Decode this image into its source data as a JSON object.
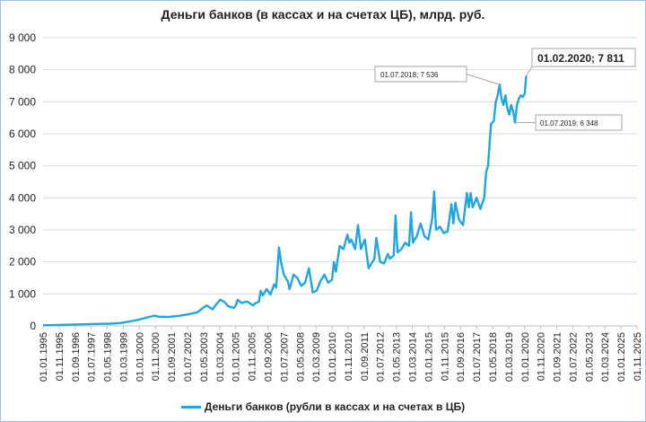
{
  "chart_data": {
    "type": "line",
    "title": "Деньги банков (в кассах и на счетах ЦБ), млрд. руб.",
    "ylim": [
      0,
      9000
    ],
    "yticks": [
      "0",
      "1 000",
      "2 000",
      "3 000",
      "4 000",
      "5 000",
      "6 000",
      "7 000",
      "8 000",
      "9 000"
    ],
    "xticks": [
      "01.01.1995",
      "01.11.1995",
      "01.09.1996",
      "01.07.1997",
      "01.05.1998",
      "01.03.1999",
      "01.01.2000",
      "01.11.2000",
      "01.09.2001",
      "01.07.2002",
      "01.05.2003",
      "01.03.2004",
      "01.01.2005",
      "01.11.2005",
      "01.09.2006",
      "01.07.2007",
      "01.05.2008",
      "01.03.2009",
      "01.01.2010",
      "01.11.2010",
      "01.09.2011",
      "01.07.2012",
      "01.05.2013",
      "01.03.2014",
      "01.01.2015",
      "01.11.2015",
      "01.09.2016",
      "01.07.2017",
      "01.05.2018",
      "01.03.2019",
      "01.01.2020",
      "01.11.2020",
      "01.09.2021",
      "01.07.2022",
      "01.05.2023",
      "01.03.2024",
      "01.01.2025",
      "01.11.2025"
    ],
    "grid": true,
    "legend_position": "bottom",
    "series": [
      {
        "name": "Деньги банков (рубли в кассах и на счетах в ЦБ)",
        "color": "#1fa6e0",
        "points": [
          [
            1995.0,
            20
          ],
          [
            1996.0,
            35
          ],
          [
            1997.0,
            50
          ],
          [
            1997.5,
            60
          ],
          [
            1998.0,
            65
          ],
          [
            1998.5,
            70
          ],
          [
            1999.0,
            90
          ],
          [
            1999.5,
            140
          ],
          [
            2000.0,
            200
          ],
          [
            2000.5,
            280
          ],
          [
            2000.8,
            320
          ],
          [
            2001.0,
            290
          ],
          [
            2001.5,
            280
          ],
          [
            2002.0,
            310
          ],
          [
            2002.5,
            360
          ],
          [
            2003.0,
            420
          ],
          [
            2003.3,
            560
          ],
          [
            2003.5,
            640
          ],
          [
            2003.8,
            520
          ],
          [
            2004.0,
            680
          ],
          [
            2004.2,
            820
          ],
          [
            2004.4,
            760
          ],
          [
            2004.6,
            620
          ],
          [
            2004.9,
            560
          ],
          [
            2005.0,
            640
          ],
          [
            2005.1,
            820
          ],
          [
            2005.3,
            720
          ],
          [
            2005.6,
            760
          ],
          [
            2005.9,
            640
          ],
          [
            2006.0,
            700
          ],
          [
            2006.2,
            760
          ],
          [
            2006.3,
            1100
          ],
          [
            2006.4,
            950
          ],
          [
            2006.6,
            1150
          ],
          [
            2006.8,
            980
          ],
          [
            2007.0,
            1300
          ],
          [
            2007.1,
            1200
          ],
          [
            2007.25,
            2450
          ],
          [
            2007.35,
            2000
          ],
          [
            2007.5,
            1600
          ],
          [
            2007.7,
            1400
          ],
          [
            2007.8,
            1150
          ],
          [
            2008.0,
            1600
          ],
          [
            2008.2,
            1500
          ],
          [
            2008.4,
            1250
          ],
          [
            2008.6,
            1350
          ],
          [
            2008.8,
            1800
          ],
          [
            2009.0,
            1050
          ],
          [
            2009.2,
            1100
          ],
          [
            2009.4,
            1400
          ],
          [
            2009.6,
            1600
          ],
          [
            2009.8,
            1350
          ],
          [
            2010.0,
            1450
          ],
          [
            2010.1,
            2000
          ],
          [
            2010.2,
            1700
          ],
          [
            2010.4,
            2500
          ],
          [
            2010.6,
            2400
          ],
          [
            2010.8,
            2850
          ],
          [
            2010.9,
            2600
          ],
          [
            2011.0,
            2700
          ],
          [
            2011.2,
            2400
          ],
          [
            2011.35,
            3150
          ],
          [
            2011.5,
            2400
          ],
          [
            2011.7,
            2700
          ],
          [
            2011.9,
            1800
          ],
          [
            2012.0,
            1900
          ],
          [
            2012.2,
            2100
          ],
          [
            2012.3,
            2750
          ],
          [
            2012.5,
            2000
          ],
          [
            2012.7,
            1950
          ],
          [
            2012.9,
            2250
          ],
          [
            2013.0,
            2100
          ],
          [
            2013.2,
            2200
          ],
          [
            2013.3,
            3450
          ],
          [
            2013.4,
            2300
          ],
          [
            2013.6,
            2400
          ],
          [
            2013.8,
            2600
          ],
          [
            2014.0,
            2500
          ],
          [
            2014.1,
            3550
          ],
          [
            2014.2,
            2600
          ],
          [
            2014.4,
            2800
          ],
          [
            2014.6,
            3200
          ],
          [
            2014.8,
            2800
          ],
          [
            2015.0,
            2700
          ],
          [
            2015.2,
            3350
          ],
          [
            2015.3,
            4200
          ],
          [
            2015.4,
            3000
          ],
          [
            2015.6,
            3100
          ],
          [
            2015.8,
            2900
          ],
          [
            2016.0,
            2950
          ],
          [
            2016.2,
            3800
          ],
          [
            2016.3,
            3200
          ],
          [
            2016.4,
            3850
          ],
          [
            2016.6,
            3300
          ],
          [
            2016.8,
            3150
          ],
          [
            2017.0,
            4150
          ],
          [
            2017.1,
            3700
          ],
          [
            2017.2,
            4150
          ],
          [
            2017.3,
            3700
          ],
          [
            2017.5,
            4000
          ],
          [
            2017.7,
            3650
          ],
          [
            2017.9,
            4000
          ],
          [
            2018.0,
            4800
          ],
          [
            2018.1,
            5000
          ],
          [
            2018.25,
            6300
          ],
          [
            2018.4,
            6400
          ],
          [
            2018.5,
            7000
          ],
          [
            2018.6,
            7200
          ],
          [
            2018.7,
            7536
          ],
          [
            2018.8,
            7100
          ],
          [
            2018.9,
            6900
          ],
          [
            2019.0,
            7200
          ],
          [
            2019.1,
            6800
          ],
          [
            2019.2,
            6600
          ],
          [
            2019.3,
            6900
          ],
          [
            2019.4,
            6700
          ],
          [
            2019.5,
            6348
          ],
          [
            2019.6,
            6900
          ],
          [
            2019.7,
            7100
          ],
          [
            2019.8,
            7200
          ],
          [
            2019.9,
            7150
          ],
          [
            2020.0,
            7250
          ],
          [
            2020.08,
            7811
          ]
        ]
      }
    ],
    "annotations": [
      {
        "label": "01.07.2018; 7 536",
        "x": 2018.7,
        "y": 7536
      },
      {
        "label": "01.07.2019;  6 348",
        "x": 2019.5,
        "y": 6348
      },
      {
        "label": "01.02.2020;  7 811",
        "x": 2020.08,
        "y": 7811
      }
    ]
  }
}
